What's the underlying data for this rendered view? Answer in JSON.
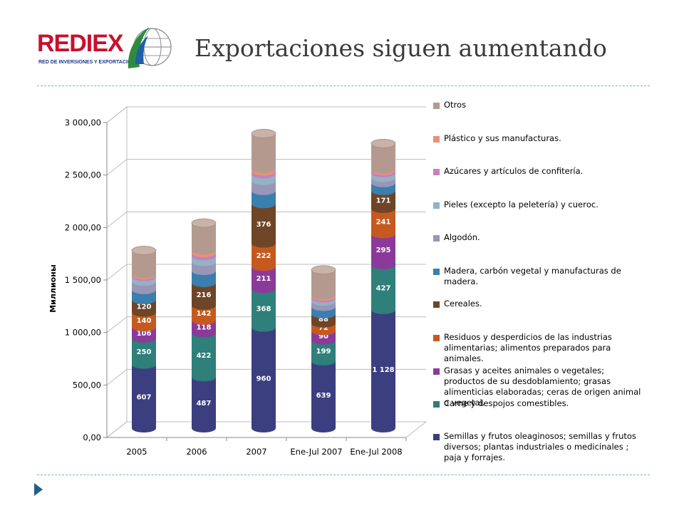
{
  "header": {
    "logo_text": "REDIEX",
    "logo_subtitle": "RED DE INVERSIONES Y EXPORTACIONES",
    "title": "Exportaciones siguen aumentando"
  },
  "chart_data": {
    "type": "bar",
    "stacked": true,
    "style": "3d-cylinder",
    "categories": [
      "2005",
      "2006",
      "2007",
      "Ene-Jul 2007",
      "Ene-Jul 2008"
    ],
    "ylabel": "Миллионы",
    "ylim": [
      0,
      3000
    ],
    "yticks": [
      "0,00",
      "500,00",
      "1 000,00",
      "1 500,00",
      "2 000,00",
      "2 500,00",
      "3 000,00"
    ],
    "grid": true,
    "legend_position": "right",
    "series": [
      {
        "name": "Semillas y frutos oleaginosos; semillas y frutos diversos; plantas industriales o medicinales ; paja y forrajes.",
        "color": "#3b3f7f",
        "values": [
          607,
          487,
          960,
          639,
          1128
        ],
        "labels": [
          "607",
          "487",
          "960",
          "639",
          "1 128"
        ]
      },
      {
        "name": "Carne y despojos comestibles.",
        "color": "#2f7f7a",
        "values": [
          250,
          422,
          368,
          199,
          427
        ],
        "labels": [
          "250",
          "422",
          "368",
          "199",
          "427"
        ]
      },
      {
        "name": "Grasas y aceites animales o vegetales; productos de su desdoblamiento; grasas alimenticias elaboradas; ceras de origen animal o vegetal.",
        "color": "#8b3a9a",
        "values": [
          106,
          118,
          211,
          90,
          295
        ],
        "labels": [
          "106",
          "118",
          "211",
          "90",
          "295"
        ]
      },
      {
        "name": "Residuos y desperdicios de las industrias alimentarias; alimentos preparados para animales.",
        "color": "#c65a1e",
        "values": [
          140,
          142,
          222,
          72,
          241
        ],
        "labels": [
          "140",
          "142",
          "222",
          "72",
          "241"
        ]
      },
      {
        "name": "Cereales.",
        "color": "#6e4527",
        "values": [
          120,
          216,
          376,
          88,
          171
        ],
        "labels": [
          "120",
          "216",
          "376",
          "88",
          "171"
        ]
      },
      {
        "name": "Madera, carbón vegetal y manufacturas de madera.",
        "color": "#3a7fae",
        "values": [
          95,
          115,
          125,
          70,
          75
        ],
        "labels": [
          "",
          "",
          "",
          "",
          ""
        ]
      },
      {
        "name": "Algodón.",
        "color": "#9a96b8",
        "values": [
          80,
          85,
          95,
          50,
          50
        ],
        "labels": [
          "",
          "",
          "",
          "",
          ""
        ]
      },
      {
        "name": "Pieles (excepto la peletería) y cuerос.",
        "color": "#93b2c4",
        "values": [
          45,
          55,
          65,
          30,
          45
        ],
        "labels": [
          "",
          "",
          "",
          "",
          ""
        ]
      },
      {
        "name": "Azúcares y artículos de confitería.",
        "color": "#c77fbe",
        "values": [
          15,
          30,
          25,
          15,
          20
        ],
        "labels": [
          "",
          "",
          "",
          "",
          ""
        ]
      },
      {
        "name": "Plástico y sus manufacturas.",
        "color": "#e2947a",
        "values": [
          15,
          25,
          25,
          15,
          15
        ],
        "labels": [
          "",
          "",
          "",
          "",
          ""
        ]
      },
      {
        "name": "Otros",
        "color": "#b49a8e",
        "values": [
          220,
          260,
          335,
          240,
          245
        ],
        "labels": [
          "",
          "",
          "",
          "",
          ""
        ]
      }
    ]
  }
}
